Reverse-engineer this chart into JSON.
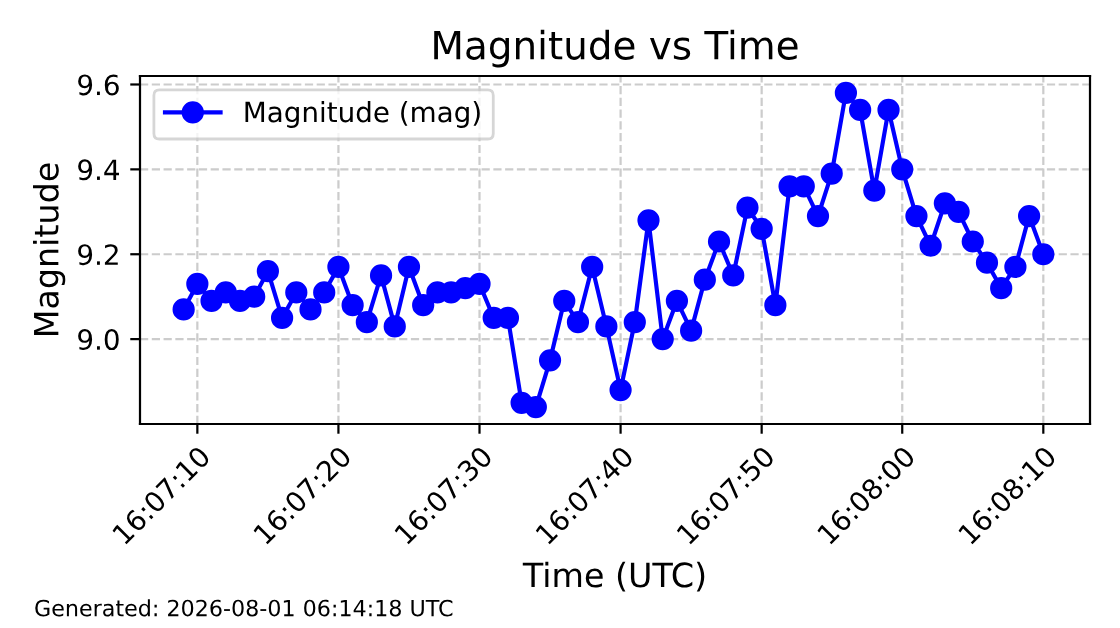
{
  "chart_data": {
    "type": "line",
    "title": "Magnitude vs Time",
    "xlabel": "Time (UTC)",
    "ylabel": "Magnitude",
    "x": [
      16.11917,
      16.11944,
      16.11972,
      16.12,
      16.12028,
      16.12056,
      16.12083,
      16.12111,
      16.12139,
      16.12167,
      16.12194,
      16.12222,
      16.1225,
      16.12278,
      16.12306,
      16.12333,
      16.12361,
      16.12389,
      16.12417,
      16.12444,
      16.12472,
      16.125,
      16.12528,
      16.12556,
      16.12583,
      16.12611,
      16.12639,
      16.12667,
      16.12694,
      16.12722,
      16.1275,
      16.12778,
      16.12806,
      16.12833,
      16.12861,
      16.12889,
      16.12917,
      16.12944,
      16.12972,
      16.13,
      16.13028,
      16.13056,
      16.13083,
      16.13111,
      16.13139,
      16.13167,
      16.13194,
      16.13222,
      16.1325,
      16.13278,
      16.13306,
      16.13333,
      16.13361,
      16.13389,
      16.13417,
      16.13444,
      16.13472,
      16.135,
      16.13528,
      16.13556,
      16.13583,
      16.13611
    ],
    "series": [
      {
        "name": "Magnitude (mag)",
        "color": "#0000ff",
        "values": [
          9.07,
          9.13,
          9.09,
          9.11,
          9.09,
          9.1,
          9.16,
          9.05,
          9.11,
          9.07,
          9.11,
          9.17,
          9.08,
          9.04,
          9.15,
          9.03,
          9.17,
          9.08,
          9.11,
          9.11,
          9.12,
          9.13,
          9.05,
          9.05,
          8.85,
          8.84,
          8.95,
          9.09,
          9.04,
          9.17,
          9.03,
          8.88,
          9.04,
          9.28,
          9.0,
          9.09,
          9.02,
          9.14,
          9.23,
          9.15,
          9.31,
          9.26,
          9.08,
          9.36,
          9.36,
          9.29,
          9.39,
          9.58,
          9.54,
          9.35,
          9.54,
          9.4,
          9.29,
          9.22,
          9.32,
          9.3,
          9.23,
          9.18,
          9.12,
          9.17,
          9.29,
          9.2
        ]
      }
    ],
    "xlim": [
      16.11831,
      16.13703
    ],
    "xticks": [
      {
        "value": 16.11944,
        "label": "16:07:10"
      },
      {
        "value": 16.12222,
        "label": "16:07:20"
      },
      {
        "value": 16.125,
        "label": "16:07:30"
      },
      {
        "value": 16.12778,
        "label": "16:07:40"
      },
      {
        "value": 16.13056,
        "label": "16:07:50"
      },
      {
        "value": 16.13333,
        "label": "16:08:00"
      },
      {
        "value": 16.13611,
        "label": "16:08:10"
      }
    ],
    "ylim": [
      8.8,
      9.62
    ],
    "yticks": [
      {
        "value": 9.0,
        "label": "9.0"
      },
      {
        "value": 9.2,
        "label": "9.2"
      },
      {
        "value": 9.4,
        "label": "9.4"
      },
      {
        "value": 9.6,
        "label": "9.6"
      }
    ],
    "grid": true,
    "line_style": "solid",
    "marker": "circle",
    "legend": "top left",
    "annotations": [
      "Generated: 2026-08-01 06:14:18 UTC"
    ]
  }
}
